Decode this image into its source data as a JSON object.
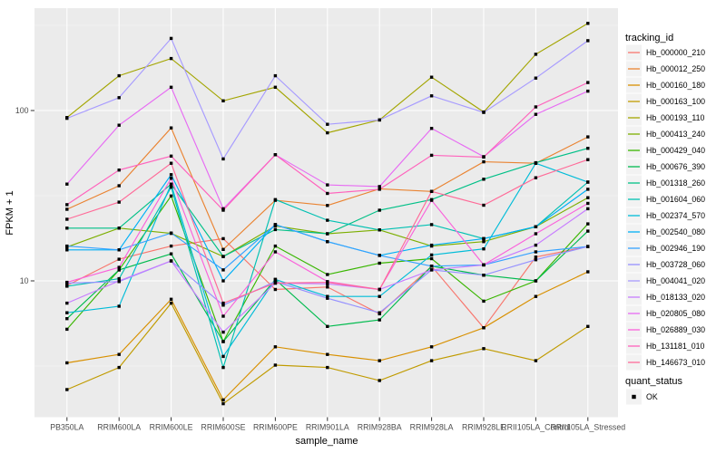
{
  "chart_data": {
    "type": "line",
    "title": "",
    "xlabel": "sample_name",
    "ylabel": "FPKM + 1",
    "y_scale": "log10",
    "ylim": [
      1.55,
      400
    ],
    "y_ticks": [
      10,
      100
    ],
    "y_tick_labels": [
      "10",
      "100"
    ],
    "y_minor_ticks": [
      3.162,
      31.623,
      316.228
    ],
    "grid": "on",
    "legend_position": "right",
    "categories": [
      "PB350LA",
      "RRIM600LA",
      "RRIM600LE",
      "RRIM600SE",
      "RRIM600PE",
      "RRIM901LA",
      "RRIM928BA",
      "RRIM928LA",
      "RRIM928LE",
      "RRII105LA_Control",
      "RRII105LA_Stressed"
    ],
    "legend": {
      "color_title": "tracking_id",
      "shape_title": "quant_status",
      "shape_entries": [
        "OK"
      ]
    },
    "marker": "black-square",
    "series": [
      {
        "tracking_id": "Hb_000000_210",
        "color": "#F8766D",
        "values": [
          9.4,
          13.4,
          16,
          17.7,
          8.9,
          9.2,
          6.4,
          12.2,
          5.3,
          13.8,
          15.9
        ]
      },
      {
        "tracking_id": "Hb_000012_250",
        "color": "#EA8331",
        "values": [
          26.3,
          36.2,
          79,
          15.3,
          29.7,
          27.7,
          34.7,
          33.5,
          50,
          49,
          70
        ]
      },
      {
        "tracking_id": "Hb_000160_180",
        "color": "#D89000",
        "values": [
          3.3,
          3.7,
          7.8,
          2.0,
          4.1,
          3.7,
          3.4,
          4.1,
          5.3,
          8.1,
          11.3
        ]
      },
      {
        "tracking_id": "Hb_000163_100",
        "color": "#C09B00",
        "values": [
          2.3,
          3.1,
          7.4,
          1.9,
          3.2,
          3.1,
          2.6,
          3.4,
          4.0,
          3.4,
          5.4
        ]
      },
      {
        "tracking_id": "Hb_000193_110",
        "color": "#A3A500",
        "values": [
          91,
          160,
          202,
          114,
          137,
          74,
          88,
          157,
          98,
          214,
          325
        ]
      },
      {
        "tracking_id": "Hb_000413_240",
        "color": "#7CAE00",
        "values": [
          15.8,
          20.4,
          19.0,
          13.9,
          21.0,
          18.9,
          19.9,
          16.0,
          17.0,
          20.8,
          30.8
        ]
      },
      {
        "tracking_id": "Hb_000429_040",
        "color": "#39B600",
        "values": [
          5.2,
          11.6,
          31.5,
          4.4,
          16.0,
          10.9,
          12.7,
          13.5,
          7.6,
          10.0,
          21.6
        ]
      },
      {
        "tracking_id": "Hb_000676_390",
        "color": "#00BB4E",
        "values": [
          6.0,
          11.6,
          14.4,
          4.4,
          10.2,
          5.4,
          5.9,
          12.2,
          10.8,
          10.0,
          19.6
        ]
      },
      {
        "tracking_id": "Hb_001318_260",
        "color": "#00C087",
        "values": [
          20.4,
          20.4,
          37.0,
          13.9,
          20.0,
          18.9,
          26.0,
          30.0,
          39.5,
          49.4,
          60.0
        ]
      },
      {
        "tracking_id": "Hb_001604_060",
        "color": "#00C0B2",
        "values": [
          9.3,
          10.3,
          35.5,
          3.1,
          30.0,
          22.7,
          19.9,
          21.4,
          17.7,
          20.8,
          38.0
        ]
      },
      {
        "tracking_id": "Hb_002374_570",
        "color": "#00BCD8",
        "values": [
          6.5,
          7.1,
          37.0,
          3.6,
          10.2,
          8.1,
          8.1,
          14.2,
          15.4,
          49.0,
          38.0
        ]
      },
      {
        "tracking_id": "Hb_002540_080",
        "color": "#00B0F6",
        "values": [
          15.2,
          15.2,
          42.0,
          10.0,
          21.4,
          17.0,
          14.1,
          16.2,
          17.7,
          20.8,
          34.5
        ]
      },
      {
        "tracking_id": "Hb_002946_190",
        "color": "#35A2FF",
        "values": [
          16.0,
          15.2,
          19.1,
          11.6,
          21.4,
          17.0,
          14.1,
          12.2,
          12.4,
          14.8,
          15.9
        ]
      },
      {
        "tracking_id": "Hb_003728_060",
        "color": "#9590FF",
        "values": [
          9.7,
          9.9,
          13.1,
          7.2,
          9.9,
          7.9,
          6.5,
          11.6,
          10.8,
          13.3,
          15.9
        ]
      },
      {
        "tracking_id": "Hb_004041_020",
        "color": "#A79BFF",
        "values": [
          90,
          119,
          265,
          52,
          160,
          83,
          88,
          122,
          97.5,
          155,
          257
        ]
      },
      {
        "tracking_id": "Hb_018133_020",
        "color": "#C77CFF",
        "values": [
          7.4,
          10.0,
          13.1,
          5.0,
          9.7,
          9.6,
          8.9,
          11.6,
          12.4,
          16.2,
          26.5
        ]
      },
      {
        "tracking_id": "Hb_020805_080",
        "color": "#E76BF3",
        "values": [
          37,
          82,
          137,
          26.5,
          55,
          36.6,
          35.8,
          78.6,
          53.6,
          95,
          130
        ]
      },
      {
        "tracking_id": "Hb_026889_030",
        "color": "#FA62DB",
        "values": [
          9.8,
          12.0,
          40.0,
          6.2,
          14.8,
          9.9,
          8.9,
          29.7,
          12.4,
          18.9,
          28.5
        ]
      },
      {
        "tracking_id": "Hb_131181_010",
        "color": "#FF62BC",
        "values": [
          28,
          44.7,
          54,
          26,
          55,
          32.6,
          34.5,
          54.6,
          53.3,
          105,
          146
        ]
      },
      {
        "tracking_id": "Hb_146673_010",
        "color": "#FF6A98",
        "values": [
          23,
          29,
          49,
          7.4,
          9.7,
          9.8,
          8.9,
          33.5,
          27.8,
          40.3,
          51.5
        ]
      }
    ]
  },
  "colors": {
    "panel_bg": "#EBEBEB",
    "grid_major": "#FFFFFF",
    "grid_minor": "#F7F7F7",
    "legend_key_bg": "#F2F2F2",
    "point": "#000000",
    "tick_mark": "#333333",
    "tick_label": "#4D4D4D",
    "axis_title": "#000000"
  }
}
